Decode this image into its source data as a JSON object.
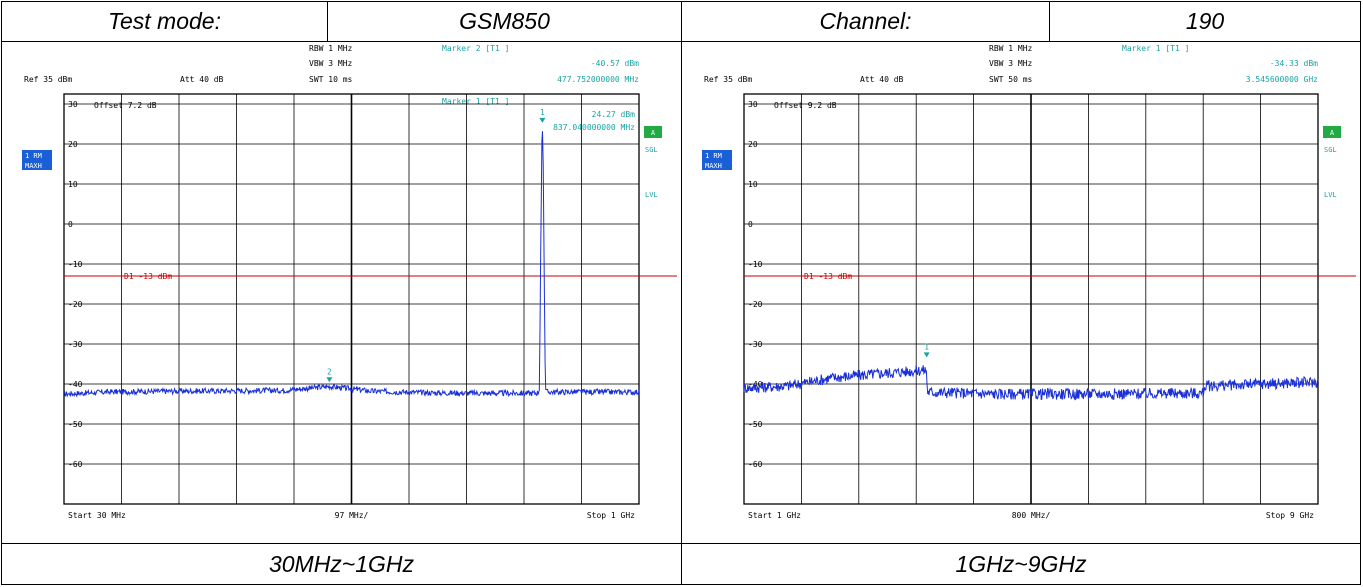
{
  "header": {
    "test_mode_label": "Test mode:",
    "test_mode_value": "GSM850",
    "channel_label": "Channel:",
    "channel_value": "190"
  },
  "footer": {
    "left_caption": "30MHz~1GHz",
    "right_caption": "1GHz~9GHz"
  },
  "colors": {
    "trace": "#1a2fd6",
    "marker": "#1aa3a3",
    "limit": "#cc0000",
    "badge": "#1a5fd6",
    "badge_green": "#22aa44"
  },
  "chart_data": [
    {
      "type": "line",
      "ref_text": "Ref  35 dBm",
      "att_text": "Att  40 dB",
      "rbw_text": "RBW  1 MHz",
      "vbw_text": "VBW  3 MHz",
      "swt_text": "SWT  10 ms",
      "offset_text": "Offset   7.2 dB",
      "marker_a": {
        "title": "Marker 2 [T1 ]",
        "level": "-40.57 dBm",
        "freq": "477.752000000 MHz"
      },
      "marker_b": {
        "title": "Marker 1 [T1 ]",
        "level": "24.27 dBm",
        "freq": "837.040000000 MHz"
      },
      "limit_text": "D1  -13 dBm",
      "start_text": "Start  30 MHz",
      "span_text": "97 MHz/",
      "stop_text": "Stop  1 GHz",
      "badge_1": "1 RM",
      "badge_2": "MAXH",
      "badge_a": "A",
      "sgl_text": "SGL",
      "lvl_text": "LVL",
      "y_ticks": [
        "30",
        "20",
        "10",
        "0",
        "-10",
        "-20",
        "-30",
        "-40",
        "-50",
        "-60"
      ],
      "ylim": [
        -65,
        35
      ],
      "xlim": [
        30,
        1000
      ],
      "x_unit": "MHz",
      "y_unit": "dBm",
      "limit_line": -13,
      "trace_points": [
        [
          30,
          -42.5
        ],
        [
          100,
          -42
        ],
        [
          200,
          -41.8
        ],
        [
          300,
          -41.7
        ],
        [
          400,
          -41.6
        ],
        [
          478,
          -40.6
        ],
        [
          550,
          -41.8
        ],
        [
          650,
          -42.2
        ],
        [
          750,
          -42.3
        ],
        [
          820,
          -42.3
        ],
        [
          830,
          -42.2
        ],
        [
          832,
          -41
        ],
        [
          834,
          -10
        ],
        [
          836,
          20
        ],
        [
          837,
          24.3
        ],
        [
          838,
          20
        ],
        [
          840,
          -10
        ],
        [
          842,
          -41
        ],
        [
          844,
          -42
        ],
        [
          900,
          -42
        ],
        [
          1000,
          -42
        ]
      ],
      "markers": [
        {
          "label": "2",
          "x": 477.752,
          "y": -40.57
        },
        {
          "label": "1",
          "x": 837.04,
          "y": 24.27
        }
      ]
    },
    {
      "type": "line",
      "ref_text": "Ref  35 dBm",
      "att_text": "Att  40 dB",
      "rbw_text": "RBW  1 MHz",
      "vbw_text": "VBW  3 MHz",
      "swt_text": "SWT  50 ms",
      "offset_text": "Offset   9.2 dB",
      "marker_a": {
        "title": "Marker 1 [T1 ]",
        "level": "-34.33 dBm",
        "freq": "3.545600000 GHz"
      },
      "marker_b": {
        "title": "",
        "level": "",
        "freq": ""
      },
      "limit_text": "D1  -13 dBm",
      "start_text": "Start  1 GHz",
      "span_text": "800 MHz/",
      "stop_text": "Stop  9 GHz",
      "badge_1": "1 RM",
      "badge_2": "MAXH",
      "badge_a": "A",
      "sgl_text": "SGL",
      "lvl_text": "LVL",
      "y_ticks": [
        "30",
        "20",
        "10",
        "0",
        "-10",
        "-20",
        "-30",
        "-40",
        "-50",
        "-60"
      ],
      "ylim": [
        -65,
        35
      ],
      "xlim": [
        1,
        9
      ],
      "x_unit": "GHz",
      "y_unit": "dBm",
      "limit_line": -13,
      "trace_points": [
        [
          1,
          -41
        ],
        [
          1.6,
          -40.5
        ],
        [
          2.2,
          -38.5
        ],
        [
          2.8,
          -37.5
        ],
        [
          3.54,
          -36.5
        ],
        [
          3.56,
          -42
        ],
        [
          4.5,
          -42.5
        ],
        [
          5.5,
          -42.5
        ],
        [
          6.5,
          -42.4
        ],
        [
          7.4,
          -42.3
        ],
        [
          7.42,
          -40.5
        ],
        [
          8.2,
          -40
        ],
        [
          9,
          -39.5
        ]
      ],
      "markers": [
        {
          "label": "1",
          "x": 3.5456,
          "y": -34.33
        }
      ]
    }
  ]
}
